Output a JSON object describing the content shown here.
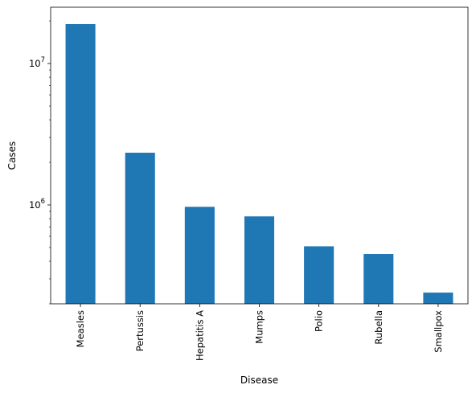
{
  "chart_data": {
    "type": "bar",
    "xlabel": "Disease",
    "ylabel": "Cases",
    "y_scale": "log",
    "ylim": [
      200000,
      25000000
    ],
    "y_ticks": [
      {
        "base": "10",
        "exp": "6",
        "value": 1000000
      },
      {
        "base": "10",
        "exp": "7",
        "value": 10000000
      }
    ],
    "categories": [
      "Measles",
      "Pertussis",
      "Hepatitis A",
      "Mumps",
      "Polio",
      "Rubella",
      "Smallpox"
    ],
    "values": [
      19000000,
      2340000,
      970000,
      830000,
      510000,
      450000,
      240000
    ],
    "bar_color": "#1f77b4",
    "grid": false,
    "legend": "none"
  }
}
